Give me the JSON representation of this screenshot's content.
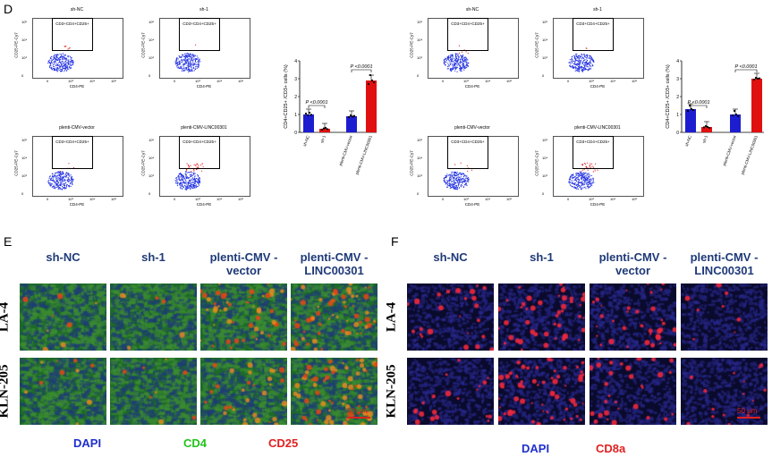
{
  "figure": {
    "panel_d_label": "D",
    "panel_e_label": "E",
    "panel_f_label": "F"
  },
  "flow_left": {
    "plots": [
      {
        "title": "sh-NC",
        "gate": "CD3+CD4+CD25+",
        "ylabel": "CD25-PE-Cy7",
        "xlabel": "CD4-PE",
        "ticks_y": [
          "10⁵",
          "10⁴",
          "10³",
          "0"
        ],
        "ticks_x": [
          "0",
          "10³",
          "10⁴",
          "10⁵"
        ]
      },
      {
        "title": "sh-1",
        "gate": "CD3+CD4+CD25+",
        "ylabel": "CD25-PE-Cy7",
        "xlabel": "CD4-PE",
        "ticks_y": [
          "10⁵",
          "10⁴",
          "10³",
          "0"
        ],
        "ticks_x": [
          "0",
          "10³",
          "10⁴",
          "10⁵"
        ]
      },
      {
        "title": "plenti-CMV-vector",
        "gate": "CD3+CD4+CD25+",
        "ylabel": "CD25-PE-Cy7",
        "xlabel": "CD4-PE",
        "ticks_y": [
          "10⁵",
          "10⁴",
          "10³",
          "0"
        ],
        "ticks_x": [
          "0",
          "10³",
          "10⁴",
          "10⁵"
        ]
      },
      {
        "title": "plenti-CMV-LINC00301",
        "gate": "CD3+CD4+CD25+",
        "ylabel": "CD25-PE-Cy7",
        "xlabel": "CD4-PE",
        "ticks_y": [
          "10⁵",
          "10⁴",
          "10³",
          "0"
        ],
        "ticks_x": [
          "0",
          "10³",
          "10⁴",
          "10⁵"
        ]
      }
    ]
  },
  "flow_right": {
    "plots": [
      {
        "title": "sh-NC",
        "gate": "CD3+CD4+CD25+",
        "ylabel": "CD25-PE-Cy7",
        "xlabel": "CD4-PE",
        "ticks_y": [
          "10⁵",
          "10⁴",
          "10³",
          "0"
        ],
        "ticks_x": [
          "0",
          "10³",
          "10⁴",
          "10⁵"
        ]
      },
      {
        "title": "sh-1",
        "gate": "CD3+CD4+CD25+",
        "ylabel": "CD25-PE-Cy7",
        "xlabel": "CD4-PE",
        "ticks_y": [
          "10⁵",
          "10⁴",
          "10³",
          "0"
        ],
        "ticks_x": [
          "0",
          "10³",
          "10⁴",
          "10⁵"
        ]
      },
      {
        "title": "plenti-CMV-vector",
        "gate": "CD3+CD4+CD25+",
        "ylabel": "CD25-PE-Cy7",
        "xlabel": "CD4-PE",
        "ticks_y": [
          "10⁵",
          "10⁴",
          "10³",
          "0"
        ],
        "ticks_x": [
          "0",
          "10³",
          "10⁴",
          "10⁵"
        ]
      },
      {
        "title": "plenti-CMV-LINC00301",
        "gate": "CD3+CD4+CD25+",
        "ylabel": "CD25-PE-Cy7",
        "xlabel": "CD4-PE",
        "ticks_y": [
          "10⁵",
          "10⁴",
          "10³",
          "0"
        ],
        "ticks_x": [
          "0",
          "10³",
          "10⁴",
          "10⁵"
        ]
      }
    ]
  },
  "chart_data": [
    {
      "type": "bar",
      "categories": [
        "sh-NC",
        "sh-1",
        "plenti-CMV-vector",
        "plenti-CMV-LINC00301"
      ],
      "values": [
        1.0,
        0.2,
        0.9,
        2.9
      ],
      "points": [
        [
          1.05,
          0.95,
          1.1,
          0.98
        ],
        [
          0.15,
          0.22,
          0.25,
          0.18
        ],
        [
          0.85,
          0.95,
          0.88,
          0.92
        ],
        [
          2.7,
          3.2,
          2.9,
          2.8
        ]
      ],
      "colors": [
        "#1d1dd0",
        "#e01010",
        "#1d1dd0",
        "#e01010"
      ],
      "ylabel": "CD4+CD25+ /CD3+ cells (%)",
      "yticks": [
        "0",
        "1",
        "2",
        "3",
        "4"
      ],
      "ylim": [
        0,
        4
      ],
      "annotations": [
        "P <0.0001",
        "P <0.0001"
      ]
    },
    {
      "type": "bar",
      "categories": [
        "sh-NC",
        "sh-1",
        "plenti-CMV-vector",
        "plenti-CMV-LINC00301"
      ],
      "values": [
        1.3,
        0.3,
        1.0,
        3.0
      ],
      "points": [
        [
          1.2,
          1.5,
          1.3,
          1.25
        ],
        [
          0.28,
          0.35,
          0.3,
          0.25
        ],
        [
          0.95,
          1.2,
          1.0,
          0.9
        ],
        [
          2.95,
          3.05,
          3.0,
          3.02
        ]
      ],
      "colors": [
        "#1d1dd0",
        "#e01010",
        "#1d1dd0",
        "#e01010"
      ],
      "ylabel": "CD4+CD25+ /CD3+ cells (%)",
      "yticks": [
        "0",
        "1",
        "2",
        "3",
        "4"
      ],
      "ylim": [
        0,
        4
      ],
      "annotations": [
        "P <0.0001",
        "P <0.0001"
      ]
    }
  ],
  "panel_e": {
    "columns": [
      "sh-NC",
      "sh-1",
      "plenti-CMV -vector",
      "plenti-CMV -LINC00301"
    ],
    "rows": [
      "LA-4",
      "KLN-205"
    ],
    "legend": [
      {
        "text": "DAPI",
        "color": "#1f2fd0"
      },
      {
        "text": "CD4",
        "color": "#22c41a"
      },
      {
        "text": "CD25",
        "color": "#e02020"
      }
    ],
    "scale": "50 μm"
  },
  "panel_f": {
    "columns": [
      "sh-NC",
      "sh-1",
      "plenti-CMV -vector",
      "plenti-CMV -LINC00301"
    ],
    "rows": [
      "LA-4",
      "KLN-205"
    ],
    "legend": [
      {
        "text": "DAPI",
        "color": "#1f2fd0"
      },
      {
        "text": "CD8a",
        "color": "#e02020"
      }
    ],
    "scale": "50 μm"
  }
}
